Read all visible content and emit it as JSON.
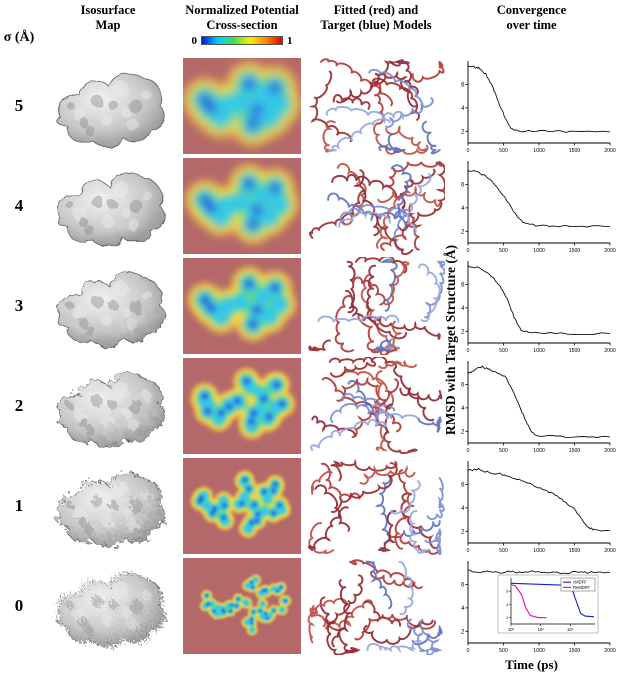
{
  "header": {
    "sigma": "σ (Å)",
    "columns": [
      {
        "title": "Isosurface\nMap"
      },
      {
        "title": "Normalized Potential\nCross-section"
      },
      {
        "title": "Fitted (red) and\nTarget (blue) Models"
      },
      {
        "title": "Convergence\nover time"
      }
    ],
    "colorbar": {
      "min": "0",
      "max": "1",
      "colors": [
        "#0018d8",
        "#00cfff",
        "#40e050",
        "#f8f000",
        "#ff8800",
        "#e60000"
      ]
    }
  },
  "rows": [
    {
      "sigma": "5"
    },
    {
      "sigma": "4"
    },
    {
      "sigma": "3"
    },
    {
      "sigma": "2"
    },
    {
      "sigma": "1"
    },
    {
      "sigma": "0"
    }
  ],
  "axes": {
    "y_label": "RMSD with Target Structure (Å)",
    "x_label": "Time (ps)"
  },
  "chart_data": [
    {
      "type": "line",
      "name": "sigma 5 convergence",
      "x_range": [
        0,
        2000
      ],
      "ylim": [
        1,
        8
      ],
      "yticks": [
        2,
        4,
        6
      ],
      "xticks": [
        0,
        500,
        1000,
        1500,
        2000
      ],
      "series": [
        {
          "name": "RMSD",
          "color": "#111111",
          "points": [
            [
              0,
              7.6
            ],
            [
              80,
              7.5
            ],
            [
              150,
              7.4
            ],
            [
              250,
              6.9
            ],
            [
              350,
              5.8
            ],
            [
              450,
              4.2
            ],
            [
              550,
              2.8
            ],
            [
              620,
              2.2
            ],
            [
              700,
              2.05
            ],
            [
              900,
              2.0
            ],
            [
              1200,
              2.0
            ],
            [
              1500,
              1.95
            ],
            [
              2000,
              1.95
            ]
          ]
        }
      ]
    },
    {
      "type": "line",
      "name": "sigma 4 convergence",
      "x_range": [
        0,
        2000
      ],
      "ylim": [
        1,
        8
      ],
      "yticks": [
        2,
        4,
        6
      ],
      "xticks": [
        0,
        500,
        1000,
        1500,
        2000
      ],
      "series": [
        {
          "name": "RMSD",
          "color": "#111111",
          "points": [
            [
              0,
              7.2
            ],
            [
              120,
              7.1
            ],
            [
              250,
              6.7
            ],
            [
              400,
              5.9
            ],
            [
              550,
              4.6
            ],
            [
              700,
              3.2
            ],
            [
              820,
              2.6
            ],
            [
              950,
              2.5
            ],
            [
              1200,
              2.45
            ],
            [
              1600,
              2.4
            ],
            [
              2000,
              2.4
            ]
          ]
        }
      ]
    },
    {
      "type": "line",
      "name": "sigma 3 convergence",
      "x_range": [
        0,
        2000
      ],
      "ylim": [
        1,
        8
      ],
      "yticks": [
        2,
        4,
        6
      ],
      "xticks": [
        0,
        500,
        1000,
        1500,
        2000
      ],
      "series": [
        {
          "name": "RMSD",
          "color": "#111111",
          "points": [
            [
              0,
              7.6
            ],
            [
              150,
              7.4
            ],
            [
              300,
              6.9
            ],
            [
              450,
              5.9
            ],
            [
              550,
              4.8
            ],
            [
              650,
              3.2
            ],
            [
              750,
              2.1
            ],
            [
              850,
              1.9
            ],
            [
              1000,
              1.85
            ],
            [
              1400,
              1.8
            ],
            [
              2000,
              1.8
            ]
          ]
        }
      ]
    },
    {
      "type": "line",
      "name": "sigma 2 convergence",
      "x_range": [
        0,
        2000
      ],
      "ylim": [
        1,
        8
      ],
      "yticks": [
        2,
        4,
        6
      ],
      "xticks": [
        0,
        500,
        1000,
        1500,
        2000
      ],
      "series": [
        {
          "name": "RMSD",
          "color": "#111111",
          "points": [
            [
              0,
              6.9
            ],
            [
              100,
              7.3
            ],
            [
              200,
              7.5
            ],
            [
              300,
              7.3
            ],
            [
              420,
              7.0
            ],
            [
              520,
              6.7
            ],
            [
              620,
              5.6
            ],
            [
              720,
              4.2
            ],
            [
              820,
              2.8
            ],
            [
              900,
              1.9
            ],
            [
              1000,
              1.6
            ],
            [
              1300,
              1.55
            ],
            [
              1700,
              1.5
            ],
            [
              2000,
              1.5
            ]
          ]
        }
      ]
    },
    {
      "type": "line",
      "name": "sigma 1 convergence",
      "x_range": [
        0,
        2000
      ],
      "ylim": [
        1,
        8
      ],
      "yticks": [
        2,
        4,
        6
      ],
      "xticks": [
        0,
        500,
        1000,
        1500,
        2000
      ],
      "series": [
        {
          "name": "RMSD",
          "color": "#111111",
          "points": [
            [
              0,
              7.2
            ],
            [
              150,
              7.3
            ],
            [
              300,
              7.0
            ],
            [
              450,
              6.9
            ],
            [
              600,
              6.6
            ],
            [
              750,
              6.4
            ],
            [
              900,
              6.0
            ],
            [
              1050,
              5.6
            ],
            [
              1200,
              5.2
            ],
            [
              1350,
              4.6
            ],
            [
              1500,
              3.9
            ],
            [
              1600,
              3.0
            ],
            [
              1700,
              2.3
            ],
            [
              1800,
              2.1
            ],
            [
              2000,
              2.05
            ]
          ]
        }
      ]
    },
    {
      "type": "line",
      "name": "sigma 0 convergence",
      "x_range": [
        0,
        2000
      ],
      "ylim": [
        1,
        8
      ],
      "yticks": [
        2,
        4,
        6
      ],
      "xticks": [
        0,
        500,
        1000,
        1500,
        2000
      ],
      "series": [
        {
          "name": "RMSD",
          "color": "#111111",
          "points": [
            [
              0,
              7.2
            ],
            [
              150,
              7.05
            ],
            [
              300,
              7.15
            ],
            [
              450,
              7.0
            ],
            [
              600,
              7.1
            ],
            [
              750,
              7.0
            ],
            [
              900,
              7.1
            ],
            [
              1050,
              7.0
            ],
            [
              1200,
              7.05
            ],
            [
              1350,
              6.95
            ],
            [
              1500,
              7.05
            ],
            [
              1650,
              7.0
            ],
            [
              1800,
              7.05
            ],
            [
              2000,
              7.0
            ]
          ]
        }
      ],
      "inset": {
        "xscale": "log",
        "xlim_log10": [
          2,
          4.8
        ],
        "ylim": [
          1,
          8
        ],
        "xticks": [
          {
            "log10": 2,
            "label": "10²"
          },
          {
            "log10": 3,
            "label": "10³"
          },
          {
            "log10": 4,
            "label": "10⁴"
          }
        ],
        "yticks": [
          2,
          4,
          6
        ],
        "series": [
          {
            "name": "cMDFF",
            "color": "#1a1ad0",
            "points": [
              [
                2,
                7.2
              ],
              [
                2.6,
                7.1
              ],
              [
                3.2,
                7.0
              ],
              [
                3.8,
                6.9
              ],
              [
                4.05,
                6.4
              ],
              [
                4.2,
                4.5
              ],
              [
                4.35,
                2.6
              ],
              [
                4.5,
                2.2
              ],
              [
                4.8,
                2.1
              ]
            ]
          },
          {
            "name": "ReMDFF",
            "color": "#f000c8",
            "points": [
              [
                2,
                7.0
              ],
              [
                2.15,
                6.8
              ],
              [
                2.35,
                5.5
              ],
              [
                2.5,
                3.5
              ],
              [
                2.65,
                2.3
              ],
              [
                2.9,
                2.0
              ],
              [
                3.2,
                1.95
              ]
            ]
          }
        ]
      }
    }
  ]
}
